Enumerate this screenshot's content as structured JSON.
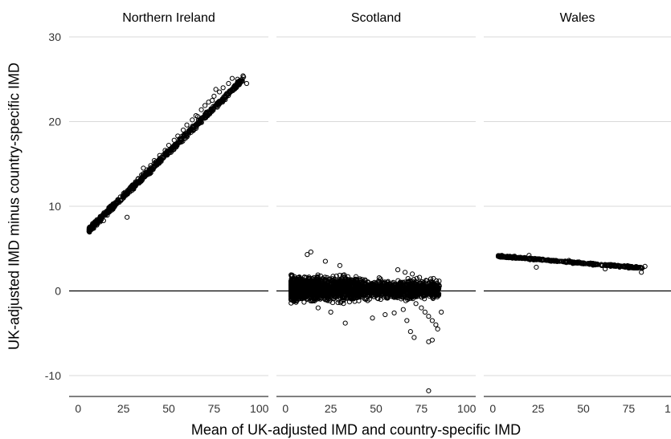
{
  "chart_data": {
    "type": "scatter",
    "xlabel": "Mean of UK-adjusted IMD and country-specific IMD",
    "ylabel": "UK-adjusted IMD minus country-specific IMD",
    "xlim": [
      -5,
      105
    ],
    "ylim": [
      -13,
      30
    ],
    "xticks": [
      0,
      25,
      50,
      75,
      100
    ],
    "yticks": [
      -10,
      0,
      10,
      20,
      30
    ],
    "grid": "horizontal",
    "reference_line_y": 0,
    "marker": "open circle",
    "facets": [
      {
        "title": "Northern Ireland",
        "trend": {
          "x": [
            6,
            92
          ],
          "y": [
            7.2,
            25.2
          ]
        },
        "points": [
          [
            6.5,
            7.3
          ],
          [
            8.0,
            7.6
          ],
          [
            10.0,
            8.0
          ],
          [
            12.0,
            8.5
          ],
          [
            15.0,
            9.0
          ],
          [
            18.0,
            9.6
          ],
          [
            20.0,
            10.2
          ],
          [
            22.0,
            10.8
          ],
          [
            25.0,
            11.3
          ],
          [
            28.0,
            12.0
          ],
          [
            30.0,
            12.5
          ],
          [
            33.0,
            13.2
          ],
          [
            35.0,
            13.7
          ],
          [
            38.0,
            14.3
          ],
          [
            40.0,
            14.8
          ],
          [
            42.0,
            15.4
          ],
          [
            45.0,
            16.0
          ],
          [
            48.0,
            16.6
          ],
          [
            50.0,
            17.2
          ],
          [
            53.0,
            17.8
          ],
          [
            55.0,
            18.3
          ],
          [
            58.0,
            19.0
          ],
          [
            60.0,
            19.6
          ],
          [
            63.0,
            20.2
          ],
          [
            65.0,
            20.7
          ],
          [
            68.0,
            21.4
          ],
          [
            70.0,
            21.9
          ],
          [
            72.0,
            22.3
          ],
          [
            75.0,
            23.0
          ],
          [
            78.0,
            23.5
          ],
          [
            80.0,
            24.0
          ],
          [
            83.0,
            24.5
          ],
          [
            85.0,
            25.1
          ],
          [
            88.0,
            25.0
          ],
          [
            91.0,
            25.4
          ],
          [
            93.0,
            24.5
          ],
          [
            82.0,
            23.3
          ],
          [
            74.0,
            22.5
          ],
          [
            66.0,
            20.6
          ],
          [
            52.0,
            16.8
          ],
          [
            27.0,
            8.7
          ],
          [
            14.0,
            8.3
          ],
          [
            36.0,
            14.5
          ],
          [
            46.0,
            15.5
          ],
          [
            61.0,
            18.9
          ],
          [
            71.0,
            21.0
          ],
          [
            76.0,
            23.8
          ]
        ]
      },
      {
        "title": "Scotland",
        "summary": {
          "x_range": [
            3,
            85
          ],
          "y_range": [
            -3.5,
            3.0
          ]
        },
        "points": [
          [
            12.0,
            4.3
          ],
          [
            14.0,
            4.6
          ],
          [
            22.0,
            3.5
          ],
          [
            30.0,
            3.0
          ],
          [
            62.0,
            2.5
          ],
          [
            66.0,
            2.2
          ],
          [
            70.0,
            2.0
          ],
          [
            74.0,
            1.6
          ],
          [
            78.0,
            1.2
          ],
          [
            80.0,
            0.5
          ],
          [
            82.0,
            0.3
          ],
          [
            84.0,
            0.1
          ],
          [
            72.0,
            -1.5
          ],
          [
            75.0,
            -2.0
          ],
          [
            77.0,
            -2.5
          ],
          [
            79.0,
            -3.0
          ],
          [
            81.0,
            -3.5
          ],
          [
            83.0,
            -4.0
          ],
          [
            84.0,
            -4.5
          ],
          [
            86.0,
            -2.5
          ],
          [
            69.0,
            -4.8
          ],
          [
            71.0,
            -5.5
          ],
          [
            79.0,
            -6.0
          ],
          [
            81.0,
            -5.8
          ],
          [
            79.0,
            -11.8
          ],
          [
            33.0,
            -3.8
          ],
          [
            48.0,
            -3.2
          ],
          [
            55.0,
            -2.8
          ],
          [
            60.0,
            -2.6
          ],
          [
            65.0,
            -2.2
          ],
          [
            67.0,
            -3.5
          ],
          [
            18.0,
            -2.0
          ],
          [
            25.0,
            -2.5
          ]
        ]
      },
      {
        "title": "Wales",
        "trend": {
          "x": [
            3,
            83
          ],
          "y": [
            4.1,
            2.7
          ]
        },
        "points": [
          [
            3.0,
            4.1
          ],
          [
            5.0,
            4.2
          ],
          [
            8.0,
            4.1
          ],
          [
            10.0,
            4.0
          ],
          [
            12.0,
            4.1
          ],
          [
            15.0,
            3.9
          ],
          [
            18.0,
            3.9
          ],
          [
            20.0,
            4.2
          ],
          [
            22.0,
            3.8
          ],
          [
            25.0,
            3.7
          ],
          [
            28.0,
            3.7
          ],
          [
            30.0,
            3.6
          ],
          [
            33.0,
            3.6
          ],
          [
            35.0,
            3.5
          ],
          [
            38.0,
            3.5
          ],
          [
            40.0,
            3.4
          ],
          [
            43.0,
            3.4
          ],
          [
            45.0,
            3.3
          ],
          [
            48.0,
            3.3
          ],
          [
            50.0,
            3.2
          ],
          [
            53.0,
            3.2
          ],
          [
            55.0,
            3.1
          ],
          [
            58.0,
            3.1
          ],
          [
            60.0,
            3.0
          ],
          [
            63.0,
            3.0
          ],
          [
            65.0,
            2.9
          ],
          [
            68.0,
            2.9
          ],
          [
            70.0,
            2.8
          ],
          [
            73.0,
            2.8
          ],
          [
            75.0,
            2.7
          ],
          [
            78.0,
            2.7
          ],
          [
            82.0,
            2.2
          ],
          [
            84.0,
            2.9
          ],
          [
            24.0,
            2.8
          ],
          [
            42.0,
            3.6
          ],
          [
            62.0,
            2.6
          ]
        ]
      }
    ]
  }
}
